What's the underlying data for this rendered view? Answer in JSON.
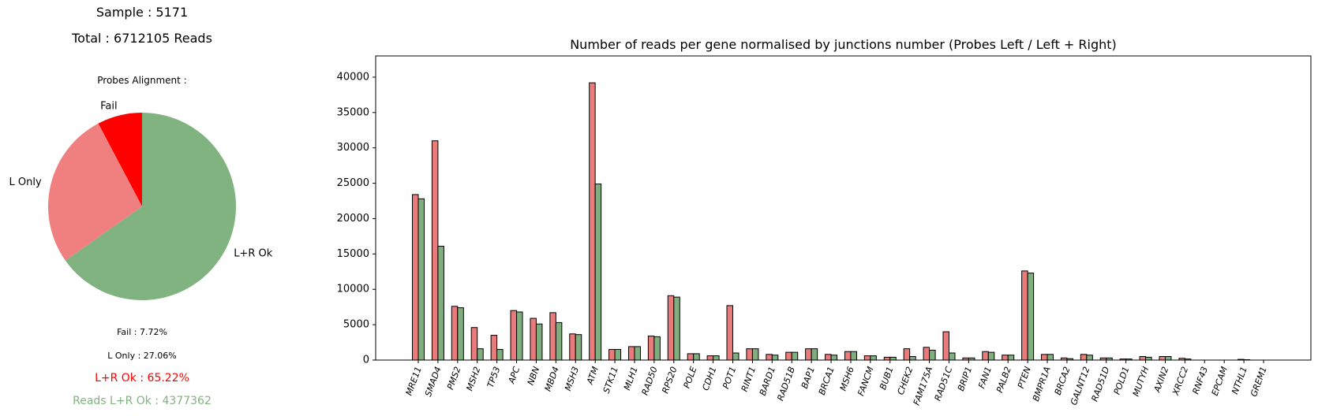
{
  "summary": {
    "sample_label": "Sample : 5171",
    "total_label": "Total : 6712105 Reads",
    "probes_title": "Probes Alignment :",
    "fail_stat": "Fail : 7.72%",
    "lonly_stat": "L Only : 27.06%",
    "lrok_stat": "L+R Ok : 65.22%",
    "reads_stat": "Reads L+R Ok : 4377362"
  },
  "colors": {
    "fail": "#ff0000",
    "l_only": "#f08080",
    "lr_ok": "#80b380",
    "lrok_text": "#ff0000",
    "reads_text": "#80b380",
    "bar_left": "#e97b7b",
    "bar_right": "#7fae7f"
  },
  "chart_data": [
    {
      "type": "pie",
      "labels": [
        "Fail",
        "L Only",
        "L+R Ok"
      ],
      "values": [
        7.72,
        27.06,
        65.22
      ],
      "start": "top, counter-clockwise"
    },
    {
      "type": "bar",
      "title": "Number of reads per gene normalised by junctions number (Probes Left / Left + Right)",
      "xlabel": "",
      "ylabel": "",
      "ylim": [
        0,
        43000
      ],
      "yticks": [
        0,
        5000,
        10000,
        15000,
        20000,
        25000,
        30000,
        35000,
        40000
      ],
      "grid": false,
      "categories": [
        "MRE11",
        "SMAD4",
        "PMS2",
        "MSH2",
        "TP53",
        "APC",
        "NBN",
        "MBD4",
        "MSH3",
        "ATM",
        "STK11",
        "MLH1",
        "RAD50",
        "RPS20",
        "POLE",
        "CDH1",
        "POT1",
        "RINT1",
        "BARD1",
        "RAD51B",
        "BAP1",
        "BRCA1",
        "MSH6",
        "FANCM",
        "BUB1",
        "CHEK2",
        "FAM175A",
        "RAD51C",
        "BRIP1",
        "FAN1",
        "PALB2",
        "PTEN",
        "BMPR1A",
        "BRCA2",
        "GALNT12",
        "RAD51D",
        "POLD1",
        "MUTYH",
        "AXIN2",
        "XRCC2",
        "RNF43",
        "EPCAM",
        "NTHL1",
        "GREM1"
      ],
      "series": [
        {
          "values": [
            23400,
            31000,
            7600,
            4600,
            3500,
            7000,
            5900,
            6700,
            3700,
            39200,
            1500,
            1900,
            3400,
            9100,
            900,
            600,
            7700,
            1600,
            800,
            1100,
            1600,
            800,
            1200,
            600,
            400,
            1600,
            1800,
            4000,
            300,
            1200,
            700,
            12600,
            800,
            300,
            800,
            300,
            150,
            500,
            500,
            250,
            0,
            0,
            100,
            0
          ]
        },
        {
          "values": [
            22800,
            16100,
            7400,
            1600,
            1500,
            6800,
            5100,
            5300,
            3600,
            24900,
            1500,
            1900,
            3300,
            8900,
            900,
            600,
            1000,
            1600,
            700,
            1100,
            1600,
            700,
            1200,
            600,
            400,
            500,
            1400,
            1000,
            300,
            1100,
            700,
            12300,
            800,
            200,
            700,
            300,
            150,
            400,
            500,
            150,
            0,
            0,
            50,
            0
          ]
        }
      ]
    }
  ]
}
